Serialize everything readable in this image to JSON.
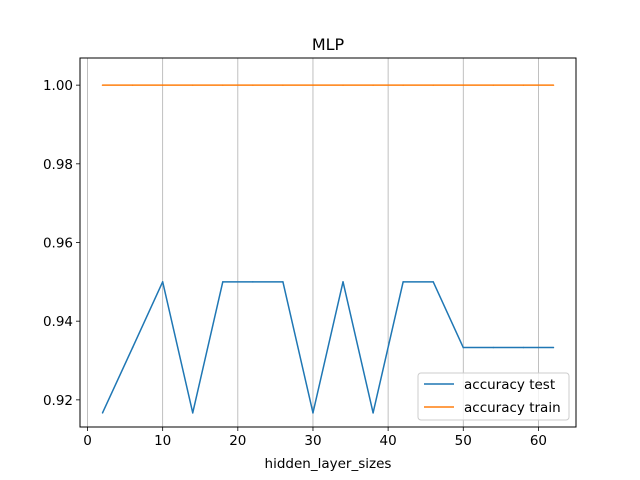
{
  "chart_data": {
    "type": "line",
    "title": "MLP",
    "xlabel": "hidden_layer_sizes",
    "ylabel": "",
    "xlim": [
      -1,
      65
    ],
    "ylim": [
      0.9131,
      1.0069
    ],
    "xticks": [
      0,
      10,
      20,
      30,
      40,
      50,
      60
    ],
    "yticks": [
      0.92,
      0.94,
      0.96,
      0.98,
      1.0
    ],
    "ytick_labels": [
      "0.92",
      "0.94",
      "0.96",
      "0.98",
      "1.00"
    ],
    "grid": "x-axis vertical lines",
    "legend_position": "lower-right",
    "x": [
      2,
      6,
      10,
      14,
      18,
      22,
      26,
      30,
      34,
      38,
      42,
      46,
      50,
      54,
      58,
      62
    ],
    "series": [
      {
        "name": "accuracy test",
        "color": "#1f77b4",
        "values": [
          0.9167,
          0.9333,
          0.95,
          0.9167,
          0.95,
          0.95,
          0.95,
          0.9167,
          0.95,
          0.9167,
          0.95,
          0.95,
          0.9333,
          0.9333,
          0.9333,
          0.9333
        ]
      },
      {
        "name": "accuracy train",
        "color": "#ff7f0e",
        "values": [
          1.0,
          1.0,
          1.0,
          1.0,
          1.0,
          1.0,
          1.0,
          1.0,
          1.0,
          1.0,
          1.0,
          1.0,
          1.0,
          1.0,
          1.0,
          1.0
        ]
      }
    ]
  }
}
